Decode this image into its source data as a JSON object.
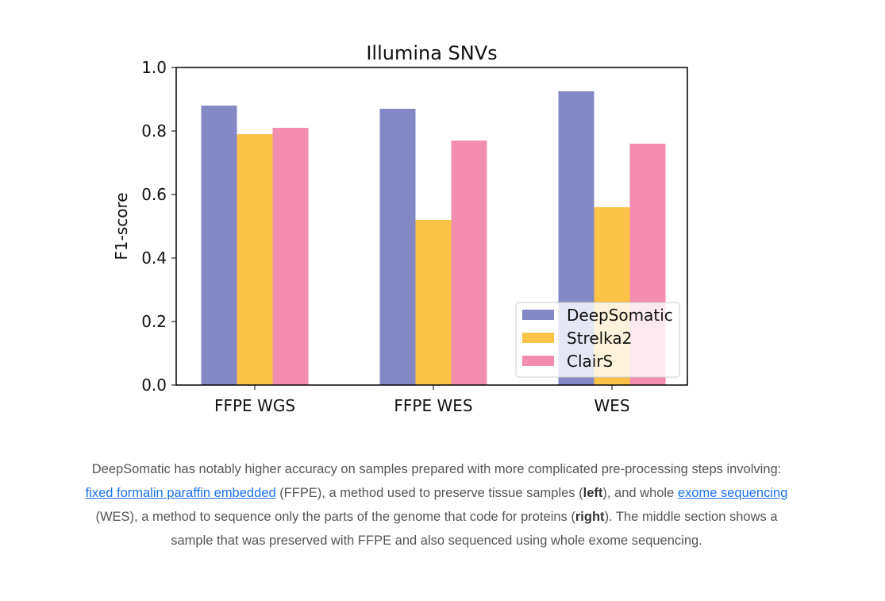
{
  "chart_data": {
    "type": "bar",
    "title": "Illumina SNVs",
    "ylabel": "F1-score",
    "xlabel": "",
    "ylim": [
      0,
      1.0
    ],
    "yticks": [
      "0.0",
      "0.2",
      "0.4",
      "0.6",
      "0.8",
      "1.0"
    ],
    "categories": [
      "FFPE WGS",
      "FFPE WES",
      "WES"
    ],
    "series": [
      {
        "name": "DeepSomatic",
        "color": "#8489c6",
        "values": [
          0.88,
          0.87,
          0.925
        ]
      },
      {
        "name": "Strelka2",
        "color": "#fbc448",
        "values": [
          0.79,
          0.52,
          0.56
        ]
      },
      {
        "name": "ClairS",
        "color": "#f28daf",
        "values": [
          0.81,
          0.77,
          0.76
        ]
      }
    ],
    "grid": false,
    "legend": "lower-right"
  },
  "caption": {
    "t1": "DeepSomatic has notably higher accuracy on samples prepared with more complicated pre-processing steps involving: ",
    "link1": "fixed formalin paraffin embedded",
    "t2": " (FFPE), a method used to preserve tissue samples (",
    "b1": "left",
    "t3": "), and whole ",
    "link2": "exome sequencing",
    "t4": " (WES), a method to sequence only the parts of the genome that code for proteins (",
    "b2": "right",
    "t5": "). The middle section shows a sample that was preserved with FFPE and also sequenced using whole exome sequencing."
  }
}
